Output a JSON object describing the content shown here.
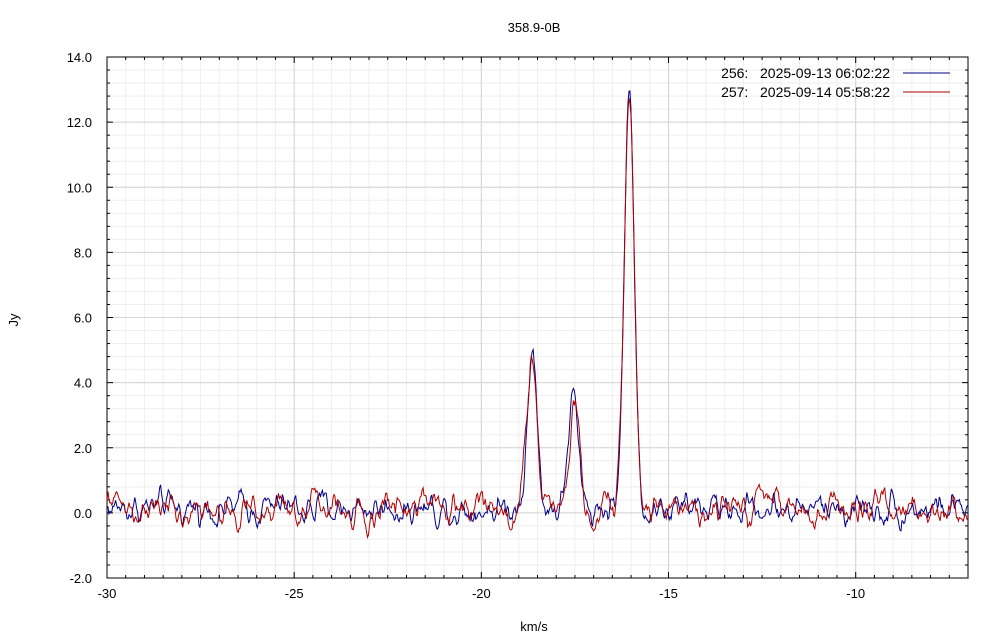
{
  "chart_data": {
    "type": "line",
    "title": "358.9-0B",
    "xlabel": "km/s",
    "ylabel": "Jy",
    "xlim": [
      -30,
      -7.0
    ],
    "ylim": [
      -2.0,
      14.0
    ],
    "x_ticks": [
      -30,
      -25,
      -20,
      -15,
      -10
    ],
    "x_tick_labels": [
      "-30",
      "-25",
      "-20",
      "-15",
      "-10"
    ],
    "y_ticks": [
      -2.0,
      0.0,
      2.0,
      4.0,
      6.0,
      8.0,
      10.0,
      12.0,
      14.0
    ],
    "y_tick_labels": [
      "-2.0",
      "0.0",
      "2.0",
      "4.0",
      "6.0",
      "8.0",
      "10.0",
      "12.0",
      "14.0"
    ],
    "grid": true,
    "legend_position": "top-right",
    "series": [
      {
        "name": "256:   2025-09-13 06:02:22",
        "color": "#00008b",
        "peaks": [
          [
            -18.65,
            4.9
          ],
          [
            -17.55,
            3.4
          ],
          [
            -16.05,
            12.85
          ]
        ],
        "noise_level": 0.55
      },
      {
        "name": "257:   2025-09-14 05:58:22",
        "color": "#b00000",
        "peaks": [
          [
            -18.65,
            4.7
          ],
          [
            -17.5,
            3.35
          ],
          [
            -16.05,
            12.7
          ]
        ],
        "noise_level": 0.55
      }
    ]
  }
}
